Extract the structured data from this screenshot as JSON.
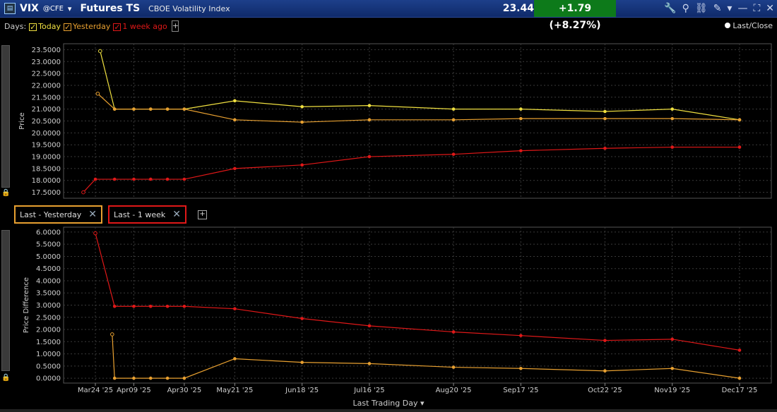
{
  "titlebar": {
    "symbol": "VIX",
    "exchange": "@CFE",
    "dropdown_glyph": "▾",
    "title": "Futures TS",
    "subtitle": "CBOE Volatility Index",
    "last": "23.44",
    "change": "+1.79 (+8.27%)"
  },
  "days_bar": {
    "label": "Days:",
    "today": "Today",
    "yesterday": "Yesterday",
    "week": "1 week ago",
    "add": "+"
  },
  "legend": {
    "last_close": "Last/Close"
  },
  "tabs": [
    {
      "label": "Last - Yesterday",
      "close": "✕"
    },
    {
      "label": "Last - 1 week",
      "close": "✕"
    }
  ],
  "add_tab": "+",
  "xaxis": {
    "title": "Last Trading Day",
    "dropdown": "▾"
  },
  "colors": {
    "today": "#f0e040",
    "yesterday": "#e8a030",
    "week": "#e01818"
  },
  "chart_data": [
    {
      "type": "line",
      "ylabel": "Price",
      "ylim": [
        17.25,
        23.75
      ],
      "yticks": [
        "17.5000",
        "18.0000",
        "18.5000",
        "19.0000",
        "19.5000",
        "20.0000",
        "20.5000",
        "21.0000",
        "21.5000",
        "22.0000",
        "22.5000",
        "23.0000",
        "23.5000"
      ],
      "xticks": [
        "Mar24 '25",
        "Apr09 '25",
        "Apr30 '25",
        "May21 '25",
        "Jun18 '25",
        "Jul16 '25",
        "Aug20 '25",
        "Sep17 '25",
        "Oct22 '25",
        "Nov19 '25",
        "Dec17 '25"
      ],
      "series": [
        {
          "name": "Today",
          "color": "#f0e040",
          "points": [
            [
              "Mar26",
              23.44
            ],
            [
              "Apr01",
              21.0
            ],
            [
              "Apr09",
              21.0
            ],
            [
              "Apr16",
              21.0
            ],
            [
              "Apr23",
              21.0
            ],
            [
              "Apr30",
              21.0
            ],
            [
              "May21",
              21.35
            ],
            [
              "Jun18",
              21.1
            ],
            [
              "Jul16",
              21.15
            ],
            [
              "Aug20",
              21.0
            ],
            [
              "Sep17",
              21.0
            ],
            [
              "Oct22",
              20.9
            ],
            [
              "Nov19",
              21.0
            ],
            [
              "Dec17",
              20.55
            ]
          ]
        },
        {
          "name": "Yesterday",
          "color": "#e8a030",
          "points": [
            [
              "Mar25",
              21.65
            ],
            [
              "Apr01",
              21.0
            ],
            [
              "Apr09",
              21.0
            ],
            [
              "Apr16",
              21.0
            ],
            [
              "Apr23",
              21.0
            ],
            [
              "Apr30",
              21.0
            ],
            [
              "May21",
              20.55
            ],
            [
              "Jun18",
              20.45
            ],
            [
              "Jul16",
              20.55
            ],
            [
              "Aug20",
              20.55
            ],
            [
              "Sep17",
              20.6
            ],
            [
              "Oct22",
              20.6
            ],
            [
              "Nov19",
              20.6
            ],
            [
              "Dec17",
              20.55
            ]
          ]
        },
        {
          "name": "1 week ago",
          "color": "#e01818",
          "points": [
            [
              "Mar19",
              17.5
            ],
            [
              "Mar24",
              18.05
            ],
            [
              "Apr01",
              18.05
            ],
            [
              "Apr09",
              18.05
            ],
            [
              "Apr16",
              18.05
            ],
            [
              "Apr23",
              18.05
            ],
            [
              "Apr30",
              18.05
            ],
            [
              "May21",
              18.5
            ],
            [
              "Jun18",
              18.65
            ],
            [
              "Jul16",
              19.0
            ],
            [
              "Aug20",
              19.1
            ],
            [
              "Sep17",
              19.25
            ],
            [
              "Oct22",
              19.35
            ],
            [
              "Nov19",
              19.4
            ],
            [
              "Dec17",
              19.4
            ]
          ]
        }
      ]
    },
    {
      "type": "line",
      "ylabel": "Price Difference",
      "ylim": [
        -0.2,
        6.2
      ],
      "yticks": [
        "0.0000",
        "0.5000",
        "1.0000",
        "1.5000",
        "2.0000",
        "2.5000",
        "3.0000",
        "3.5000",
        "4.0000",
        "4.5000",
        "5.0000",
        "5.5000",
        "6.0000"
      ],
      "xticks": [
        "Mar24 '25",
        "Apr09 '25",
        "Apr30 '25",
        "May21 '25",
        "Jun18 '25",
        "Jul16 '25",
        "Aug20 '25",
        "Sep17 '25",
        "Oct22 '25",
        "Nov19 '25",
        "Dec17 '25"
      ],
      "series": [
        {
          "name": "Last - 1 week",
          "color": "#e01818",
          "points": [
            [
              "Mar24",
              5.95
            ],
            [
              "Apr01",
              2.95
            ],
            [
              "Apr09",
              2.95
            ],
            [
              "Apr16",
              2.95
            ],
            [
              "Apr23",
              2.95
            ],
            [
              "Apr30",
              2.95
            ],
            [
              "May21",
              2.85
            ],
            [
              "Jun18",
              2.45
            ],
            [
              "Jul16",
              2.15
            ],
            [
              "Aug20",
              1.9
            ],
            [
              "Sep17",
              1.75
            ],
            [
              "Oct22",
              1.55
            ],
            [
              "Nov19",
              1.6
            ],
            [
              "Dec17",
              1.15
            ]
          ]
        },
        {
          "name": "Last - Yesterday",
          "color": "#e8a030",
          "points": [
            [
              "Mar31",
              1.8
            ],
            [
              "Apr01",
              0.0
            ],
            [
              "Apr09",
              0.0
            ],
            [
              "Apr16",
              0.0
            ],
            [
              "Apr23",
              0.0
            ],
            [
              "Apr30",
              0.0
            ],
            [
              "May21",
              0.8
            ],
            [
              "Jun18",
              0.65
            ],
            [
              "Jul16",
              0.6
            ],
            [
              "Aug20",
              0.45
            ],
            [
              "Sep17",
              0.4
            ],
            [
              "Oct22",
              0.3
            ],
            [
              "Nov19",
              0.4
            ],
            [
              "Dec17",
              0.0
            ]
          ]
        }
      ]
    }
  ]
}
